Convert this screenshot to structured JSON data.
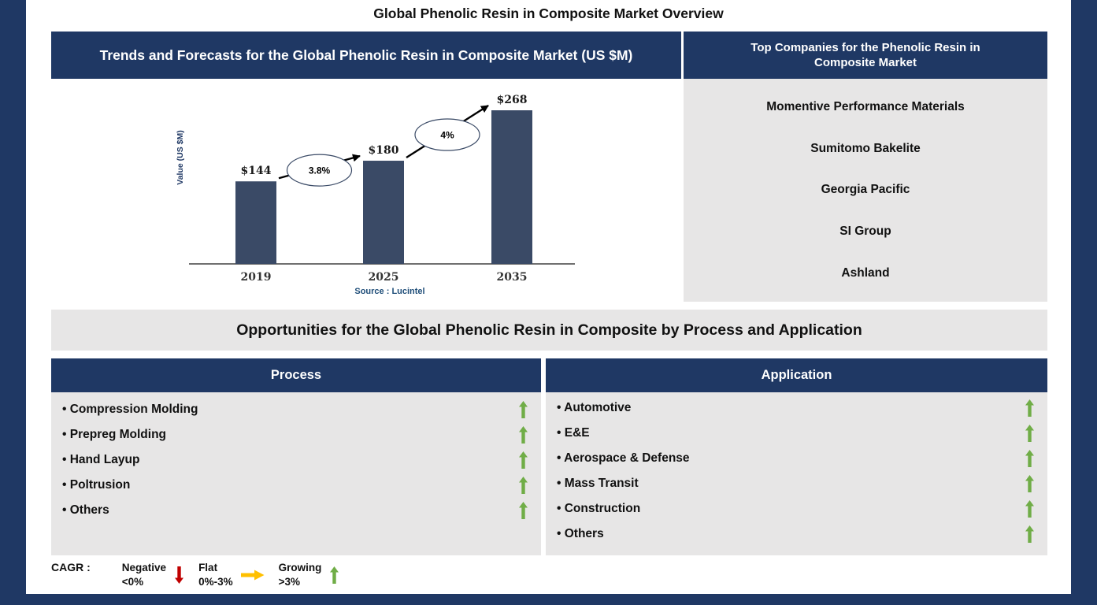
{
  "page_title": "Global Phenolic Resin in Composite Market Overview",
  "colors": {
    "navy": "#1F3864",
    "light_gray": "#E7E6E6",
    "growing": "#70AD47",
    "flat": "#FFC000",
    "negative": "#C00000",
    "source_blue": "#1F4E79"
  },
  "trends_panel": {
    "title": "Trends and Forecasts for the Global Phenolic Resin in Composite Market (US $M)",
    "source": "Source : Lucintel"
  },
  "chart_data": {
    "type": "bar",
    "title": "Trends and Forecasts for the Global Phenolic Resin in Composite Market (US $M)",
    "categories": [
      "2019",
      "2025",
      "2035"
    ],
    "values": [
      144,
      180,
      268
    ],
    "value_labels": [
      "$144",
      "$180",
      "$268"
    ],
    "cagr_labels": [
      "3.8%",
      "4%"
    ],
    "xlabel": "",
    "ylabel": "Value (US $M)",
    "ylim": [
      0,
      268
    ],
    "grid": false,
    "legend_position": "none",
    "bar_color": "#3A4A66"
  },
  "top_companies": {
    "title": "Top Companies for the Phenolic Resin in Composite Market",
    "items": [
      "Momentive Performance Materials",
      "Sumitomo Bakelite",
      "Georgia Pacific",
      "SI Group",
      "Ashland"
    ]
  },
  "opportunities_banner": "Opportunities for the Global Phenolic Resin in Composite by Process and Application",
  "process": {
    "title": "Process",
    "items": [
      "Compression Molding",
      "Prepreg Molding",
      "Hand Layup",
      "Poltrusion",
      "Others"
    ]
  },
  "application": {
    "title": "Application",
    "items": [
      "Automotive",
      "E&E",
      "Aerospace & Defense",
      "Mass Transit",
      "Construction",
      "Others"
    ]
  },
  "legend": {
    "label": "CAGR :",
    "entries": [
      {
        "name": "Negative",
        "range": "<0%",
        "direction": "down",
        "color": "#C00000"
      },
      {
        "name": "Flat",
        "range": "0%-3%",
        "direction": "right",
        "color": "#FFC000"
      },
      {
        "name": "Growing",
        "range": ">3%",
        "direction": "up",
        "color": "#70AD47"
      }
    ]
  }
}
